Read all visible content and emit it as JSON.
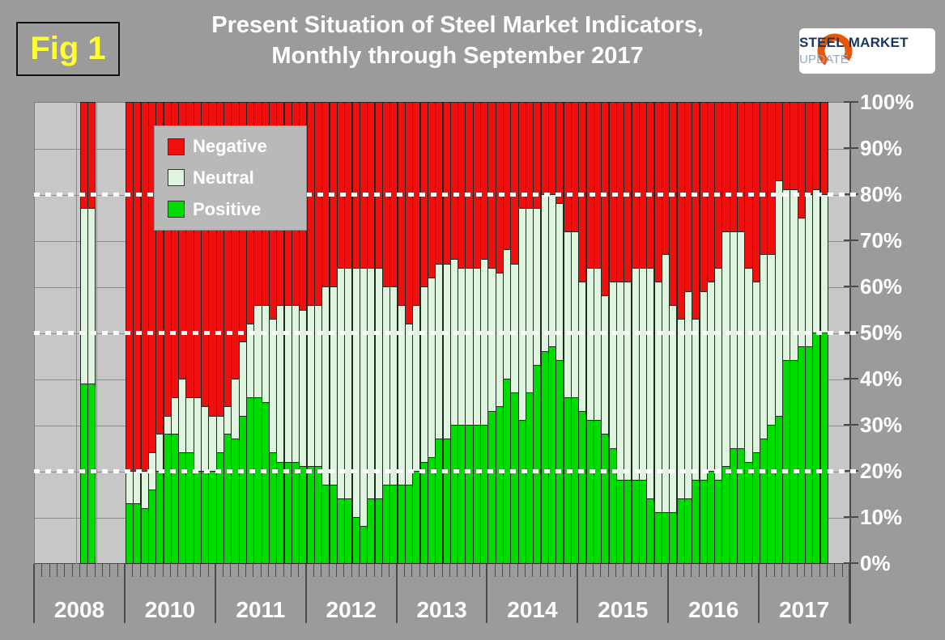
{
  "figure_label": "Fig 1",
  "title": {
    "line1": "Present Situation of Steel Market Indicators,",
    "line2": "Monthly through September 2017"
  },
  "logo": {
    "steel": "STEEL",
    "market": "MARKET",
    "update": "UPDATE",
    "arc_color": "#e8560a"
  },
  "legend": [
    {
      "label": "Negative",
      "color": "#ee0f0f"
    },
    {
      "label": "Neutral",
      "color": "#dff4df"
    },
    {
      "label": "Positive",
      "color": "#00dc00"
    }
  ],
  "y_axis": {
    "labels": [
      "100%",
      "90%",
      "80%",
      "70%",
      "60%",
      "50%",
      "40%",
      "30%",
      "20%",
      "10%",
      "0%"
    ]
  },
  "chart_data": {
    "type": "bar",
    "stacked": true,
    "unit": "percent",
    "ylim": [
      0,
      100
    ],
    "gridline_step": 10,
    "dotted_reference_lines": [
      20,
      50,
      80
    ],
    "legend_position": "top-left-inside",
    "series_order": [
      "positive",
      "neutral",
      "negative"
    ],
    "note_values_are": "[positive%, neutral%, negative%] per month; null = no survey bar",
    "years": [
      {
        "label": "2008",
        "months": [
          null,
          null,
          null,
          null,
          null,
          null,
          [
            39,
            38,
            23
          ],
          [
            39,
            38,
            23
          ],
          null,
          null,
          null,
          null
        ]
      },
      {
        "label": "2010",
        "months": [
          [
            13,
            7,
            80
          ],
          [
            13,
            7,
            80
          ],
          [
            12,
            8,
            80
          ],
          [
            16,
            8,
            76
          ],
          [
            20,
            8,
            72
          ],
          [
            28,
            4,
            68
          ],
          [
            28,
            8,
            64
          ],
          [
            24,
            16,
            60
          ],
          [
            24,
            12,
            64
          ],
          [
            20,
            16,
            64
          ],
          [
            20,
            14,
            66
          ],
          [
            20,
            12,
            68
          ]
        ]
      },
      {
        "label": "2011",
        "months": [
          [
            24,
            8,
            68
          ],
          [
            28,
            6,
            66
          ],
          [
            27,
            13,
            60
          ],
          [
            32,
            16,
            52
          ],
          [
            36,
            16,
            48
          ],
          [
            36,
            20,
            44
          ],
          [
            35,
            21,
            44
          ],
          [
            24,
            29,
            47
          ],
          [
            22,
            34,
            44
          ],
          [
            22,
            34,
            44
          ],
          [
            22,
            34,
            44
          ],
          [
            21,
            34,
            45
          ]
        ]
      },
      {
        "label": "2012",
        "months": [
          [
            21,
            35,
            44
          ],
          [
            21,
            35,
            44
          ],
          [
            17,
            43,
            40
          ],
          [
            17,
            43,
            40
          ],
          [
            14,
            50,
            36
          ],
          [
            14,
            50,
            36
          ],
          [
            10,
            54,
            36
          ],
          [
            8,
            56,
            36
          ],
          [
            14,
            50,
            36
          ],
          [
            14,
            50,
            36
          ],
          [
            17,
            43,
            40
          ],
          [
            17,
            43,
            40
          ]
        ]
      },
      {
        "label": "2013",
        "months": [
          [
            17,
            39,
            44
          ],
          [
            17,
            35,
            48
          ],
          [
            20,
            36,
            44
          ],
          [
            22,
            38,
            40
          ],
          [
            23,
            39,
            38
          ],
          [
            27,
            38,
            35
          ],
          [
            27,
            38,
            35
          ],
          [
            30,
            36,
            34
          ],
          [
            30,
            34,
            36
          ],
          [
            30,
            34,
            36
          ],
          [
            30,
            34,
            36
          ],
          [
            30,
            36,
            34
          ]
        ]
      },
      {
        "label": "2014",
        "months": [
          [
            33,
            31,
            36
          ],
          [
            34,
            29,
            37
          ],
          [
            40,
            28,
            32
          ],
          [
            37,
            28,
            35
          ],
          [
            31,
            46,
            23
          ],
          [
            37,
            40,
            23
          ],
          [
            43,
            34,
            23
          ],
          [
            46,
            34,
            20
          ],
          [
            47,
            33,
            20
          ],
          [
            44,
            34,
            22
          ],
          [
            36,
            36,
            28
          ],
          [
            36,
            36,
            28
          ]
        ]
      },
      {
        "label": "2015",
        "months": [
          [
            33,
            28,
            39
          ],
          [
            31,
            33,
            36
          ],
          [
            31,
            33,
            36
          ],
          [
            28,
            30,
            42
          ],
          [
            25,
            36,
            39
          ],
          [
            18,
            43,
            39
          ],
          [
            18,
            43,
            39
          ],
          [
            18,
            46,
            36
          ],
          [
            18,
            46,
            36
          ],
          [
            14,
            50,
            36
          ],
          [
            11,
            50,
            39
          ],
          [
            11,
            56,
            33
          ]
        ]
      },
      {
        "label": "2016",
        "months": [
          [
            11,
            45,
            44
          ],
          [
            14,
            39,
            47
          ],
          [
            14,
            45,
            41
          ],
          [
            18,
            35,
            47
          ],
          [
            18,
            41,
            41
          ],
          [
            20,
            41,
            39
          ],
          [
            18,
            46,
            36
          ],
          [
            21,
            51,
            28
          ],
          [
            25,
            47,
            28
          ],
          [
            25,
            47,
            28
          ],
          [
            22,
            42,
            36
          ],
          [
            24,
            37,
            39
          ]
        ]
      },
      {
        "label": "2017",
        "months": [
          [
            27,
            40,
            33
          ],
          [
            30,
            37,
            33
          ],
          [
            32,
            51,
            17
          ],
          [
            44,
            37,
            19
          ],
          [
            44,
            37,
            19
          ],
          [
            47,
            28,
            25
          ],
          [
            47,
            33,
            20
          ],
          [
            50,
            31,
            19
          ],
          [
            50,
            30,
            20
          ],
          null,
          null,
          null
        ]
      }
    ]
  },
  "colors": {
    "outer_background": "#9b9b9b",
    "plot_background": "#c7c7c7",
    "gridline": "#8d8d8d",
    "bar_outline": "#1f2a1f",
    "reference_line": "#ffffff",
    "axis_text": "#ffffff",
    "figure_label_text": "#ffff2e"
  }
}
